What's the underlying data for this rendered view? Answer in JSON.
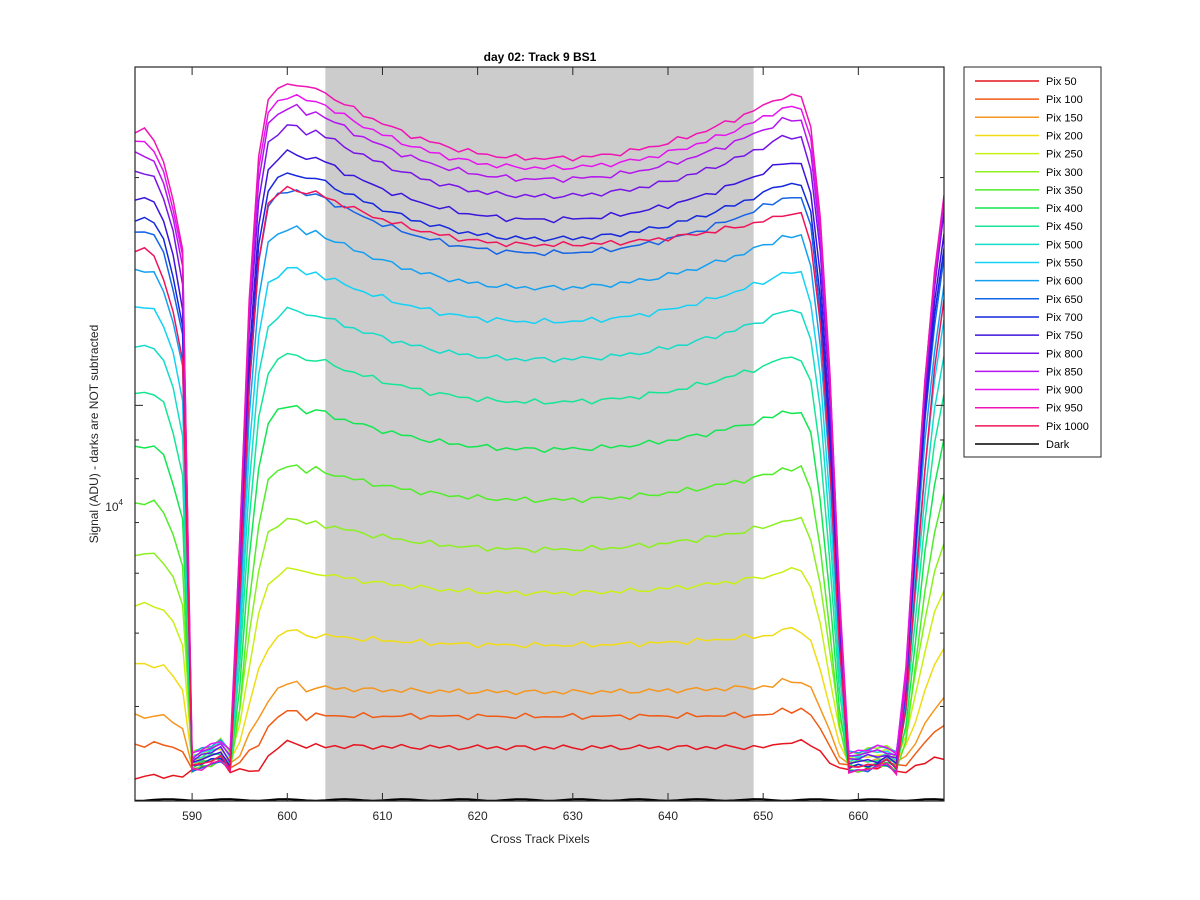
{
  "chart_data": {
    "type": "line",
    "title": "day 02: Track 9  BS1",
    "xlabel": "Cross Track Pixels",
    "ylabel": "Signal (ADU) - darks are NOT subtracted",
    "xlim": [
      584,
      669
    ],
    "ylim": [
      3000,
      28000
    ],
    "yscale": "log",
    "x_ticks": [
      590,
      600,
      610,
      620,
      630,
      640,
      650,
      660
    ],
    "y_tick_labels": [
      {
        "base": "10",
        "exp": "4",
        "value": 10000
      }
    ],
    "grid": false,
    "legend_position": "outside-right",
    "shaded_region": {
      "x": [
        604,
        649
      ],
      "color": "#cccccc"
    },
    "series": [
      {
        "name": "Pix 50",
        "color": "#e6141e",
        "left_peak": 3600,
        "center": 3530,
        "right_peak": 3590
      },
      {
        "name": "Pix 100",
        "color": "#f05a14",
        "left_peak": 3950,
        "center": 3880,
        "right_peak": 3960
      },
      {
        "name": "Pix 150",
        "color": "#f5961e",
        "left_peak": 4300,
        "center": 4180,
        "right_peak": 4320
      },
      {
        "name": "Pix 200",
        "color": "#f0dc14",
        "left_peak": 5050,
        "center": 4820,
        "right_peak": 5050
      },
      {
        "name": "Pix 250",
        "color": "#c8f014",
        "left_peak": 6100,
        "center": 5650,
        "right_peak": 6050
      },
      {
        "name": "Pix 300",
        "color": "#8cf01e",
        "left_peak": 7100,
        "center": 6450,
        "right_peak": 7050
      },
      {
        "name": "Pix 350",
        "color": "#50ed28",
        "left_peak": 8350,
        "center": 7500,
        "right_peak": 8250
      },
      {
        "name": "Pix 400",
        "color": "#14e650",
        "left_peak": 10000,
        "center": 8750,
        "right_peak": 9800
      },
      {
        "name": "Pix 450",
        "color": "#14e696",
        "left_peak": 11700,
        "center": 10100,
        "right_peak": 11550
      },
      {
        "name": "Pix 500",
        "color": "#14dcc8",
        "left_peak": 13400,
        "center": 11500,
        "right_peak": 13300
      },
      {
        "name": "Pix 550",
        "color": "#14d2f5",
        "left_peak": 15200,
        "center": 12900,
        "right_peak": 14950
      },
      {
        "name": "Pix 600",
        "color": "#14a0f0",
        "left_peak": 17200,
        "center": 14300,
        "right_peak": 16700
      },
      {
        "name": "Pix 650",
        "color": "#1464e6",
        "left_peak": 19300,
        "center": 15900,
        "right_peak": 18800
      },
      {
        "name": "Pix 700",
        "color": "#1428dc",
        "left_peak": 20300,
        "center": 16600,
        "right_peak": 19600
      },
      {
        "name": "Pix 750",
        "color": "#3c14dc",
        "left_peak": 21600,
        "center": 17600,
        "right_peak": 20900
      },
      {
        "name": "Pix 800",
        "color": "#7814e6",
        "left_peak": 23400,
        "center": 18900,
        "right_peak": 22600
      },
      {
        "name": "Pix 850",
        "color": "#b414f0",
        "left_peak": 24800,
        "center": 19900,
        "right_peak": 23800
      },
      {
        "name": "Pix 900",
        "color": "#e614f0",
        "left_peak": 25700,
        "center": 20600,
        "right_peak": 24700
      },
      {
        "name": "Pix 950",
        "color": "#f014b4",
        "left_peak": 26700,
        "center": 21200,
        "right_peak": 25600
      },
      {
        "name": "Pix 1000",
        "color": "#f0145a",
        "left_peak": 19400,
        "center": 16300,
        "right_peak": 17900
      },
      {
        "name": "Dark",
        "color": "#000000",
        "left_peak": 3010,
        "center": 3010,
        "right_peak": 3010
      }
    ]
  }
}
